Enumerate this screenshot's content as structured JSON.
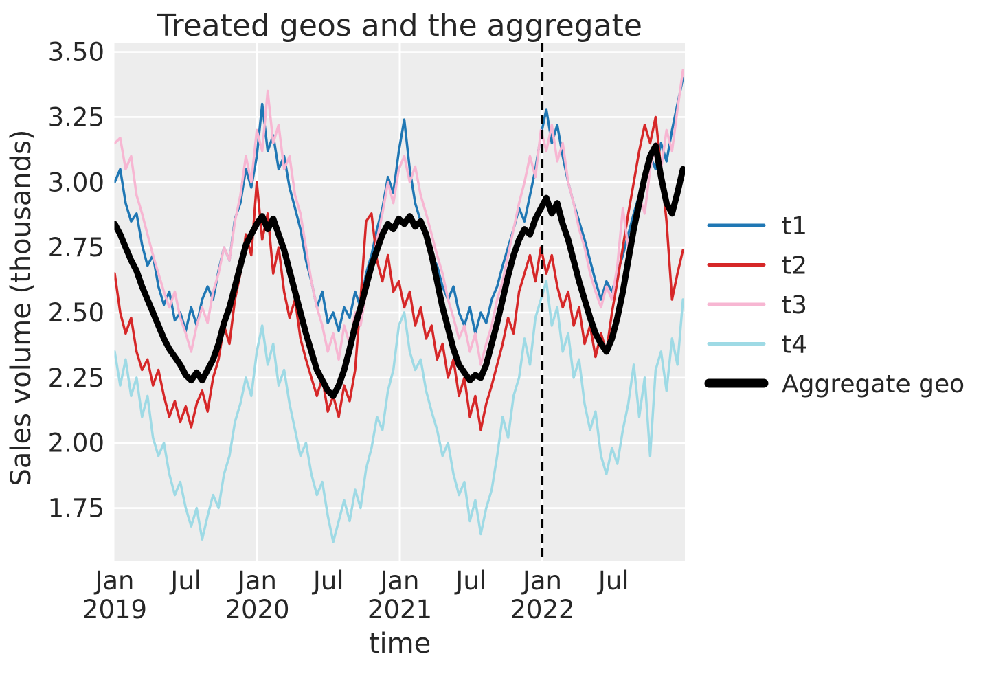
{
  "title": "Treated geos and the aggregate",
  "axes": {
    "x_label": "time",
    "y_label": "Sales volume (thousands)",
    "y_ticks": [
      "3.50",
      "3.25",
      "3.00",
      "2.75",
      "2.50",
      "2.25",
      "2.00",
      "1.75"
    ],
    "y_tick_values": [
      3.5,
      3.25,
      3.0,
      2.75,
      2.5,
      2.25,
      2.0,
      1.75
    ],
    "x_ticks": [
      {
        "month": "Jan",
        "year": "2019",
        "pos_years": 0.0
      },
      {
        "month": "Jul",
        "year": "",
        "pos_years": 0.5
      },
      {
        "month": "Jan",
        "year": "2020",
        "pos_years": 1.0
      },
      {
        "month": "Jul",
        "year": "",
        "pos_years": 1.5
      },
      {
        "month": "Jan",
        "year": "2021",
        "pos_years": 2.0
      },
      {
        "month": "Jul",
        "year": "",
        "pos_years": 2.5
      },
      {
        "month": "Jan",
        "year": "2022",
        "pos_years": 3.0
      },
      {
        "month": "Jul",
        "year": "",
        "pos_years": 3.5
      }
    ]
  },
  "legend": {
    "entries": [
      {
        "label": "t1",
        "color": "#1f77b4",
        "line_width": 5
      },
      {
        "label": "t2",
        "color": "#d62728",
        "line_width": 5
      },
      {
        "label": "t3",
        "color": "#f7b6d2",
        "line_width": 5
      },
      {
        "label": "t4",
        "color": "#9edae5",
        "line_width": 5
      },
      {
        "label": "Aggregate geo",
        "color": "#000000",
        "line_width": 13
      }
    ]
  },
  "colors": {
    "plot_background": "#ededed",
    "grid": "#ffffff",
    "text": "#262626",
    "treatment_line": "#000000"
  },
  "treatment_marker": {
    "style": "dashed-vertical-line",
    "date": "2022-01-01",
    "pos_years": 3.0
  },
  "chart_data": {
    "type": "line",
    "title": "Treated geos and the aggregate",
    "xlabel": "time",
    "ylabel": "Sales volume (thousands)",
    "x_start": "2019-01-01",
    "x_step_days": 14,
    "x_note": "biweekly samples estimated from plot; values in thousands",
    "ylim": [
      1.55,
      3.53
    ],
    "xlim_years": [
      0.0,
      4.0
    ],
    "grid": "on",
    "legend_position": "right outside axes",
    "vline_years": 3.0,
    "series": [
      {
        "name": "t1",
        "color": "#1f77b4",
        "width": 3.5,
        "values": [
          3.0,
          3.05,
          2.92,
          2.85,
          2.88,
          2.76,
          2.68,
          2.72,
          2.6,
          2.53,
          2.58,
          2.47,
          2.5,
          2.43,
          2.52,
          2.45,
          2.55,
          2.6,
          2.55,
          2.66,
          2.75,
          2.7,
          2.86,
          2.92,
          3.05,
          2.98,
          3.1,
          3.3,
          3.12,
          3.18,
          3.05,
          3.1,
          2.98,
          2.9,
          2.82,
          2.7,
          2.62,
          2.52,
          2.58,
          2.46,
          2.5,
          2.43,
          2.52,
          2.48,
          2.58,
          2.52,
          2.65,
          2.72,
          2.82,
          2.9,
          3.02,
          2.96,
          3.12,
          3.24,
          3.05,
          2.92,
          2.85,
          2.78,
          2.72,
          2.68,
          2.6,
          2.55,
          2.6,
          2.5,
          2.45,
          2.52,
          2.42,
          2.5,
          2.46,
          2.55,
          2.6,
          2.68,
          2.75,
          2.82,
          2.9,
          2.85,
          2.95,
          3.05,
          3.18,
          3.28,
          3.15,
          3.22,
          3.1,
          3.0,
          2.92,
          2.85,
          2.78,
          2.7,
          2.62,
          2.55,
          2.62,
          2.58,
          2.65,
          2.72,
          2.8,
          2.88,
          2.95,
          3.02,
          3.1,
          3.05,
          3.15,
          3.08,
          3.2,
          3.3,
          3.4
        ]
      },
      {
        "name": "t2",
        "color": "#d62728",
        "width": 3.5,
        "values": [
          2.65,
          2.5,
          2.42,
          2.48,
          2.35,
          2.28,
          2.32,
          2.22,
          2.28,
          2.18,
          2.1,
          2.16,
          2.08,
          2.14,
          2.06,
          2.15,
          2.2,
          2.12,
          2.25,
          2.32,
          2.45,
          2.38,
          2.55,
          2.65,
          2.8,
          2.72,
          3.0,
          2.78,
          2.88,
          2.65,
          2.75,
          2.58,
          2.48,
          2.55,
          2.4,
          2.32,
          2.25,
          2.18,
          2.25,
          2.12,
          2.18,
          2.1,
          2.22,
          2.16,
          2.28,
          2.55,
          2.85,
          2.88,
          2.7,
          2.62,
          2.72,
          2.58,
          2.62,
          2.52,
          2.58,
          2.45,
          2.52,
          2.4,
          2.45,
          2.32,
          2.38,
          2.25,
          2.32,
          2.18,
          2.25,
          2.1,
          2.18,
          2.05,
          2.15,
          2.22,
          2.3,
          2.38,
          2.48,
          2.42,
          2.58,
          2.65,
          2.72,
          2.62,
          2.75,
          2.65,
          2.72,
          2.6,
          2.52,
          2.58,
          2.45,
          2.52,
          2.38,
          2.45,
          2.33,
          2.42,
          2.35,
          2.5,
          2.62,
          2.75,
          2.88,
          3.0,
          3.12,
          3.22,
          3.15,
          3.25,
          3.05,
          2.85,
          2.55,
          2.65,
          2.74
        ]
      },
      {
        "name": "t3",
        "color": "#f7b6d2",
        "width": 3.5,
        "values": [
          3.15,
          3.17,
          3.05,
          3.1,
          2.95,
          2.88,
          2.8,
          2.72,
          2.65,
          2.58,
          2.52,
          2.58,
          2.48,
          2.42,
          2.35,
          2.45,
          2.52,
          2.46,
          2.58,
          2.65,
          2.75,
          2.7,
          2.85,
          2.95,
          3.1,
          3.0,
          3.2,
          3.12,
          3.35,
          3.15,
          3.22,
          3.05,
          3.1,
          2.95,
          2.88,
          2.75,
          2.62,
          2.52,
          2.45,
          2.35,
          2.42,
          2.32,
          2.45,
          2.38,
          2.5,
          2.45,
          2.58,
          2.65,
          2.78,
          2.88,
          3.0,
          2.92,
          3.05,
          3.1,
          3.0,
          3.06,
          2.95,
          2.88,
          2.8,
          2.72,
          2.65,
          2.55,
          2.48,
          2.4,
          2.45,
          2.35,
          2.42,
          2.3,
          2.38,
          2.45,
          2.55,
          2.62,
          2.72,
          2.82,
          2.92,
          3.0,
          3.1,
          3.02,
          3.2,
          3.12,
          3.22,
          3.08,
          3.15,
          3.0,
          2.92,
          2.82,
          2.75,
          2.65,
          2.58,
          2.52,
          2.6,
          2.55,
          2.68,
          2.9,
          2.75,
          2.85,
          2.95,
          2.88,
          3.05,
          3.15,
          3.05,
          3.2,
          3.12,
          3.28,
          3.43
        ]
      },
      {
        "name": "t4",
        "color": "#9edae5",
        "width": 3.5,
        "values": [
          2.35,
          2.22,
          2.32,
          2.18,
          2.25,
          2.1,
          2.18,
          2.02,
          1.95,
          2.0,
          1.88,
          1.8,
          1.85,
          1.75,
          1.68,
          1.75,
          1.63,
          1.72,
          1.8,
          1.75,
          1.88,
          1.95,
          2.08,
          2.15,
          2.25,
          2.18,
          2.35,
          2.45,
          2.3,
          2.38,
          2.22,
          2.28,
          2.15,
          2.05,
          1.95,
          2.0,
          1.88,
          1.8,
          1.85,
          1.72,
          1.62,
          1.7,
          1.78,
          1.7,
          1.82,
          1.75,
          1.9,
          1.98,
          2.1,
          2.05,
          2.2,
          2.28,
          2.45,
          2.5,
          2.35,
          2.28,
          2.32,
          2.2,
          2.12,
          2.05,
          1.95,
          2.0,
          1.88,
          1.8,
          1.85,
          1.7,
          1.78,
          1.65,
          1.75,
          1.82,
          1.95,
          2.1,
          2.02,
          2.18,
          2.25,
          2.4,
          2.3,
          2.48,
          2.55,
          2.62,
          2.45,
          2.52,
          2.35,
          2.42,
          2.25,
          2.32,
          2.15,
          2.05,
          2.12,
          1.95,
          1.88,
          1.98,
          1.92,
          2.05,
          2.15,
          2.3,
          2.1,
          2.25,
          1.95,
          2.28,
          2.35,
          2.2,
          2.4,
          2.3,
          2.55
        ]
      },
      {
        "name": "Aggregate geo",
        "color": "#000000",
        "width": 9,
        "values": [
          2.84,
          2.8,
          2.75,
          2.7,
          2.66,
          2.6,
          2.55,
          2.5,
          2.45,
          2.4,
          2.36,
          2.33,
          2.3,
          2.26,
          2.24,
          2.27,
          2.24,
          2.28,
          2.32,
          2.38,
          2.46,
          2.52,
          2.6,
          2.68,
          2.76,
          2.8,
          2.84,
          2.87,
          2.82,
          2.86,
          2.8,
          2.74,
          2.66,
          2.58,
          2.5,
          2.42,
          2.35,
          2.28,
          2.24,
          2.2,
          2.18,
          2.22,
          2.28,
          2.36,
          2.45,
          2.52,
          2.6,
          2.68,
          2.74,
          2.8,
          2.84,
          2.82,
          2.86,
          2.84,
          2.87,
          2.83,
          2.85,
          2.8,
          2.72,
          2.62,
          2.52,
          2.44,
          2.36,
          2.3,
          2.27,
          2.24,
          2.26,
          2.25,
          2.3,
          2.38,
          2.46,
          2.55,
          2.64,
          2.72,
          2.78,
          2.82,
          2.8,
          2.86,
          2.9,
          2.94,
          2.88,
          2.92,
          2.84,
          2.78,
          2.7,
          2.62,
          2.55,
          2.48,
          2.42,
          2.38,
          2.35,
          2.4,
          2.48,
          2.58,
          2.7,
          2.82,
          2.92,
          3.02,
          3.1,
          3.14,
          3.02,
          2.92,
          2.88,
          2.96,
          3.05
        ]
      }
    ]
  }
}
